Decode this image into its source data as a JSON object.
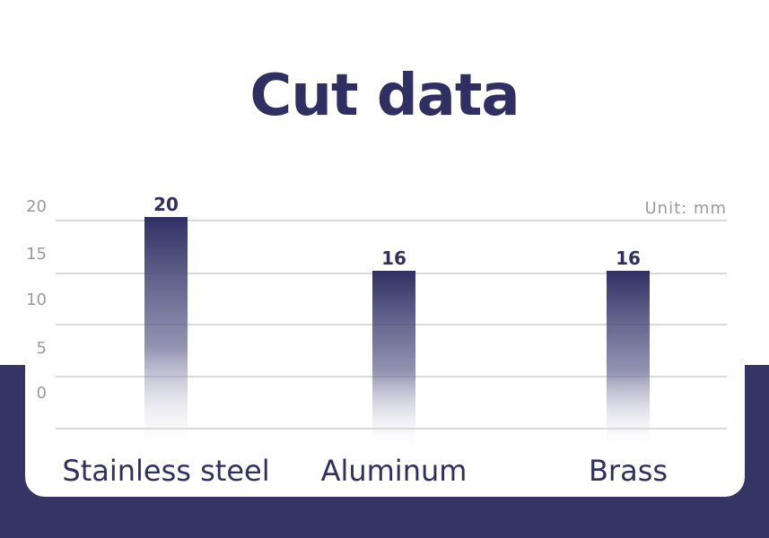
{
  "colors": {
    "accent": "#353565",
    "text": "#2f2f63",
    "tick": "#9a9a9a",
    "grid": "#b5b5b5"
  },
  "chart_data": {
    "type": "bar",
    "title": "Cut data",
    "unit_label": "Unit: mm",
    "categories": [
      "Stainless steel",
      "Aluminum",
      "Brass"
    ],
    "values": [
      20,
      16,
      16
    ],
    "data_labels": [
      "20",
      "16",
      "16"
    ],
    "yticks": [
      "0",
      "5",
      "10",
      "15",
      "20"
    ],
    "grid": true,
    "legend": "none"
  }
}
